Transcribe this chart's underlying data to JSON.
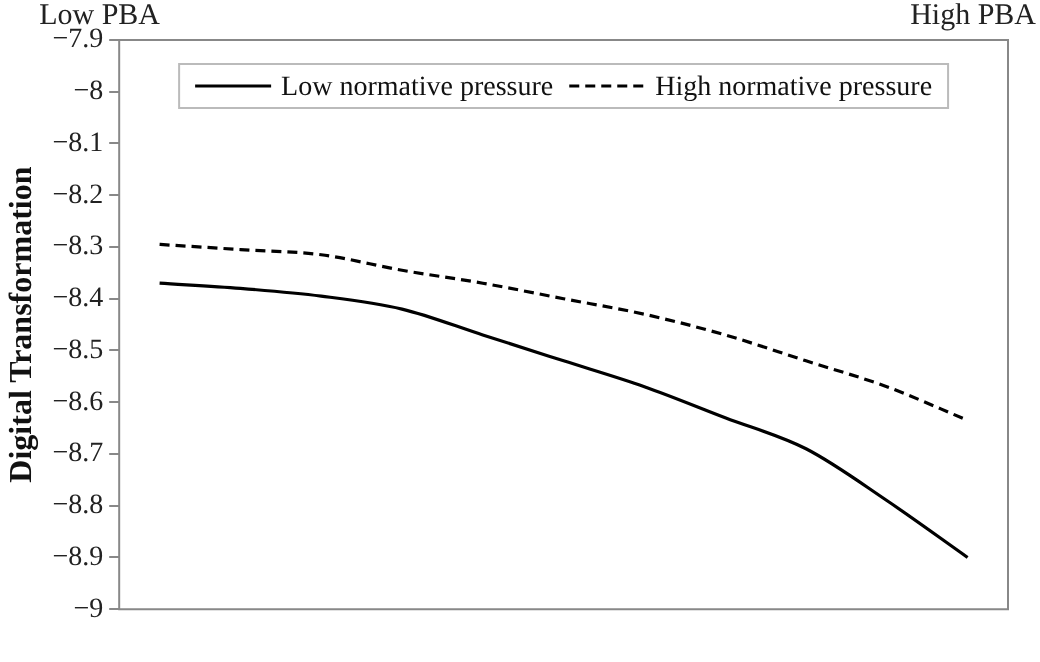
{
  "chart_data": {
    "type": "line",
    "ylabel": "Digital Transformation",
    "annotations": [
      "Low PBA",
      "High PBA"
    ],
    "categories": [
      null,
      null,
      null,
      null,
      null,
      null,
      null,
      null,
      null,
      null,
      null
    ],
    "series": [
      {
        "name": "Low normative pressure",
        "color": "#000000",
        "line_style": "solid",
        "values": [
          -8.37,
          -8.38,
          -8.395,
          -8.42,
          -8.47,
          -8.52,
          -8.57,
          -8.63,
          -8.69,
          -8.79,
          -8.9
        ]
      },
      {
        "name": "High normative pressure",
        "color": "#000000",
        "line_style": "dashed",
        "values": [
          -8.295,
          -8.305,
          -8.315,
          -8.345,
          -8.37,
          -8.4,
          -8.43,
          -8.47,
          -8.52,
          -8.57,
          -8.635
        ]
      }
    ],
    "ylim": [
      -9,
      -7.9
    ],
    "yticks": [
      -9,
      -8.9,
      -8.8,
      -8.7,
      -8.6,
      -8.5,
      -8.4,
      -8.3,
      -8.2,
      -8.1,
      -8,
      -7.9
    ],
    "grid": false,
    "legend": "top",
    "marker": "none"
  }
}
